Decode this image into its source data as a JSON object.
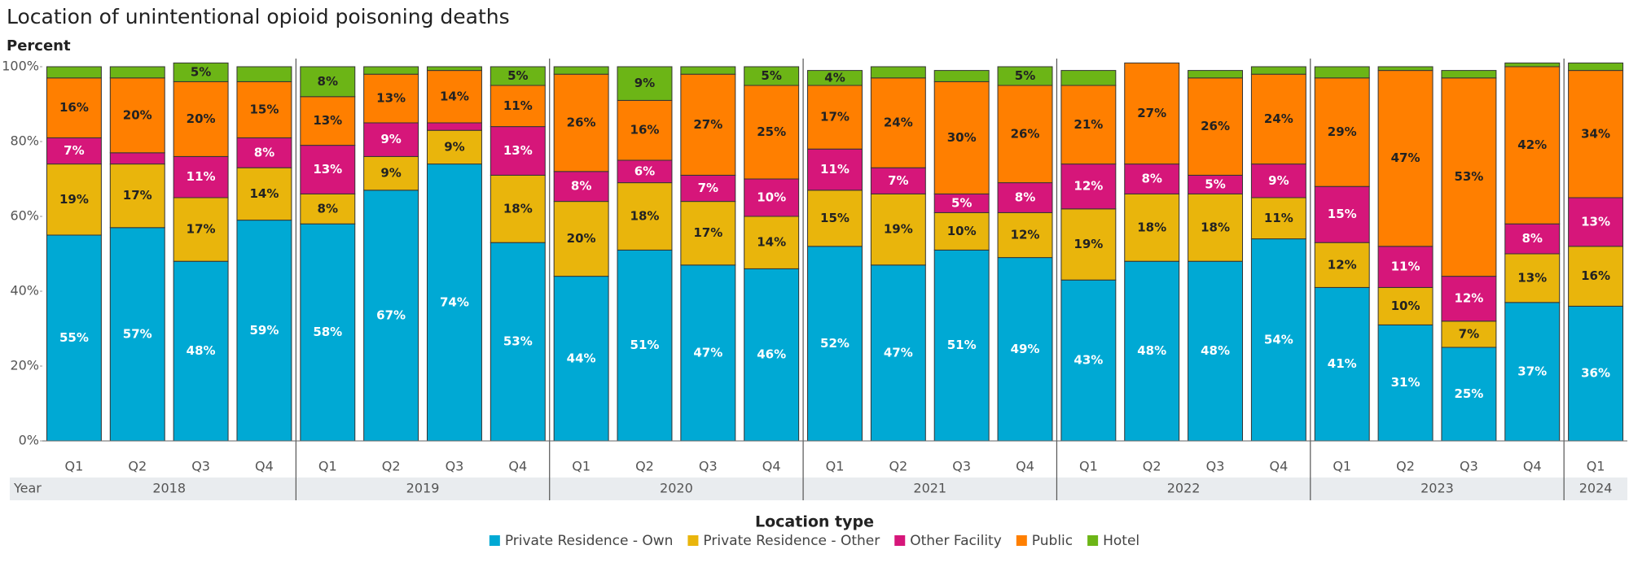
{
  "chart_data": {
    "type": "stacked_bar",
    "title": "Location of unintentional opioid poisoning deaths",
    "y_axis_label": "Percent",
    "x_group_label": "Year",
    "legend_title": "Location type",
    "year_groups": [
      {
        "name": "2018",
        "quarters": [
          "Q1",
          "Q2",
          "Q3",
          "Q4"
        ]
      },
      {
        "name": "2019",
        "quarters": [
          "Q1",
          "Q2",
          "Q3",
          "Q4"
        ]
      },
      {
        "name": "2020",
        "quarters": [
          "Q1",
          "Q2",
          "Q3",
          "Q4"
        ]
      },
      {
        "name": "2021",
        "quarters": [
          "Q1",
          "Q2",
          "Q3",
          "Q4"
        ]
      },
      {
        "name": "2022",
        "quarters": [
          "Q1",
          "Q2",
          "Q3",
          "Q4"
        ]
      },
      {
        "name": "2023",
        "quarters": [
          "Q1",
          "Q2",
          "Q3",
          "Q4"
        ]
      },
      {
        "name": "2024",
        "quarters": [
          "Q1"
        ]
      }
    ],
    "ylim": [
      0,
      100
    ],
    "yticks": [
      {
        "value": 0,
        "label": "0%"
      },
      {
        "value": 20,
        "label": "20%"
      },
      {
        "value": 40,
        "label": "40%"
      },
      {
        "value": 60,
        "label": "60%"
      },
      {
        "value": 80,
        "label": "80%"
      },
      {
        "value": 100,
        "label": "100%"
      }
    ],
    "series": [
      {
        "name": "Private Residence - Own",
        "color": "#00a9d4",
        "label_color": "#ffffff",
        "values": [
          55,
          57,
          48,
          59,
          58,
          67,
          74,
          53,
          44,
          51,
          47,
          46,
          52,
          47,
          51,
          49,
          43,
          48,
          48,
          54,
          41,
          31,
          25,
          37,
          36
        ],
        "value_labels": [
          "55%",
          "57%",
          "48%",
          "59%",
          "58%",
          "67%",
          "74%",
          "53%",
          "44%",
          "51%",
          "47%",
          "46%",
          "52%",
          "47%",
          "51%",
          "49%",
          "43%",
          "48%",
          "48%",
          "54%",
          "41%",
          "31%",
          "25%",
          "37%",
          "36%"
        ]
      },
      {
        "name": "Private Residence - Other",
        "color": "#e9b50c",
        "label_color": "#222222",
        "values": [
          19,
          17,
          17,
          14,
          8,
          9,
          9,
          18,
          20,
          18,
          17,
          14,
          15,
          19,
          10,
          12,
          19,
          18,
          18,
          11,
          12,
          10,
          7,
          13,
          16
        ],
        "value_labels": [
          "19%",
          "17%",
          "17%",
          "14%",
          "8%",
          "9%",
          "9%",
          "18%",
          "20%",
          "18%",
          "17%",
          "14%",
          "15%",
          "19%",
          "10%",
          "12%",
          "19%",
          "18%",
          "18%",
          "11%",
          "12%",
          "10%",
          "7%",
          "13%",
          "16%"
        ]
      },
      {
        "name": "Other Facility",
        "color": "#d6167a",
        "label_color": "#ffffff",
        "values": [
          7,
          3,
          11,
          8,
          13,
          9,
          2,
          13,
          8,
          6,
          7,
          10,
          11,
          7,
          5,
          8,
          12,
          8,
          5,
          9,
          15,
          11,
          12,
          8,
          13
        ],
        "value_labels": [
          "7%",
          null,
          "11%",
          "8%",
          "13%",
          "9%",
          null,
          "13%",
          "8%",
          "6%",
          "7%",
          "10%",
          "11%",
          "7%",
          "5%",
          "8%",
          "12%",
          "8%",
          "5%",
          "9%",
          "15%",
          "11%",
          "12%",
          "8%",
          "13%"
        ]
      },
      {
        "name": "Public",
        "color": "#ff7f00",
        "label_color": "#222222",
        "values": [
          16,
          20,
          20,
          15,
          13,
          13,
          14,
          11,
          26,
          16,
          27,
          25,
          17,
          24,
          30,
          26,
          21,
          27,
          26,
          24,
          29,
          47,
          53,
          42,
          34
        ],
        "value_labels": [
          "16%",
          "20%",
          "20%",
          "15%",
          "13%",
          "13%",
          "14%",
          "11%",
          "26%",
          "16%",
          "27%",
          "25%",
          "17%",
          "24%",
          "30%",
          "26%",
          "21%",
          "27%",
          "26%",
          "24%",
          "29%",
          "47%",
          "53%",
          "42%",
          "34%"
        ]
      },
      {
        "name": "Hotel",
        "color": "#6cb516",
        "label_color": "#222222",
        "values": [
          3,
          3,
          5,
          4,
          8,
          2,
          1,
          5,
          2,
          9,
          2,
          5,
          4,
          3,
          3,
          5,
          4,
          0,
          2,
          2,
          3,
          1,
          2,
          1,
          2
        ],
        "value_labels": [
          null,
          null,
          "5%",
          null,
          "8%",
          null,
          null,
          "5%",
          null,
          "9%",
          null,
          "5%",
          "4%",
          null,
          null,
          "5%",
          null,
          null,
          null,
          null,
          null,
          null,
          null,
          null,
          null
        ]
      }
    ]
  }
}
